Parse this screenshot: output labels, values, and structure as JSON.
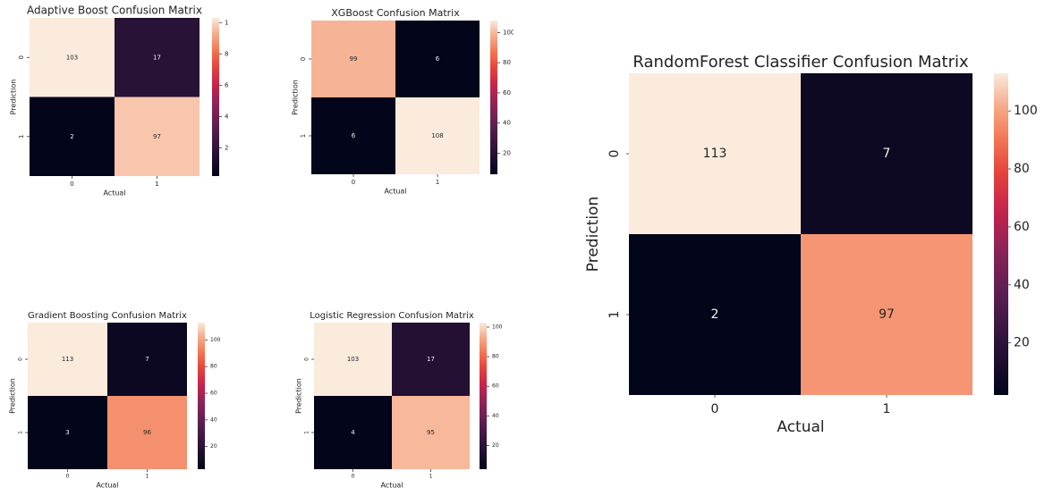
{
  "chart_data": [
    {
      "type": "heatmap",
      "title": "Adaptive Boost Confusion Matrix",
      "xlabel": "Actual",
      "ylabel": "Prediction",
      "x_categories": [
        "0",
        "1"
      ],
      "y_categories": [
        "0",
        "1"
      ],
      "values": [
        [
          103,
          17
        ],
        [
          2,
          97
        ]
      ],
      "colorbar": {
        "min": 2,
        "max": 103,
        "ticks": [
          20,
          40,
          60,
          80,
          100
        ]
      },
      "colormap": "rocket"
    },
    {
      "type": "heatmap",
      "title": "XGBoost Confusion Matrix",
      "xlabel": "Actual",
      "ylabel": "Prediction",
      "x_categories": [
        "0",
        "1"
      ],
      "y_categories": [
        "0",
        "1"
      ],
      "values": [
        [
          99,
          6
        ],
        [
          6,
          108
        ]
      ],
      "colorbar": {
        "min": 6,
        "max": 108,
        "ticks": [
          20,
          40,
          60,
          80,
          100
        ]
      },
      "colormap": "rocket"
    },
    {
      "type": "heatmap",
      "title": "Gradient Boosting Confusion Matrix",
      "xlabel": "Actual",
      "ylabel": "Prediction",
      "x_categories": [
        "0",
        "1"
      ],
      "y_categories": [
        "0",
        "1"
      ],
      "values": [
        [
          113,
          7
        ],
        [
          3,
          96
        ]
      ],
      "colorbar": {
        "min": 3,
        "max": 113,
        "ticks": [
          20,
          40,
          60,
          80,
          100
        ]
      },
      "colormap": "rocket"
    },
    {
      "type": "heatmap",
      "title": "Logistic Regression Confusion Matrix",
      "xlabel": "Actual",
      "ylabel": "Prediction",
      "x_categories": [
        "0",
        "1"
      ],
      "y_categories": [
        "0",
        "1"
      ],
      "values": [
        [
          103,
          17
        ],
        [
          4,
          95
        ]
      ],
      "colorbar": {
        "min": 4,
        "max": 103,
        "ticks": [
          20,
          40,
          60,
          80,
          100
        ]
      },
      "colormap": "rocket"
    },
    {
      "type": "heatmap",
      "title": "RandomForest Classifier Confusion Matrix",
      "xlabel": "Actual",
      "ylabel": "Prediction",
      "x_categories": [
        "0",
        "1"
      ],
      "y_categories": [
        "0",
        "1"
      ],
      "values": [
        [
          113,
          7
        ],
        [
          2,
          97
        ]
      ],
      "colorbar": {
        "min": 2,
        "max": 113,
        "ticks": [
          20,
          40,
          60,
          80,
          100
        ]
      },
      "colormap": "rocket"
    }
  ]
}
